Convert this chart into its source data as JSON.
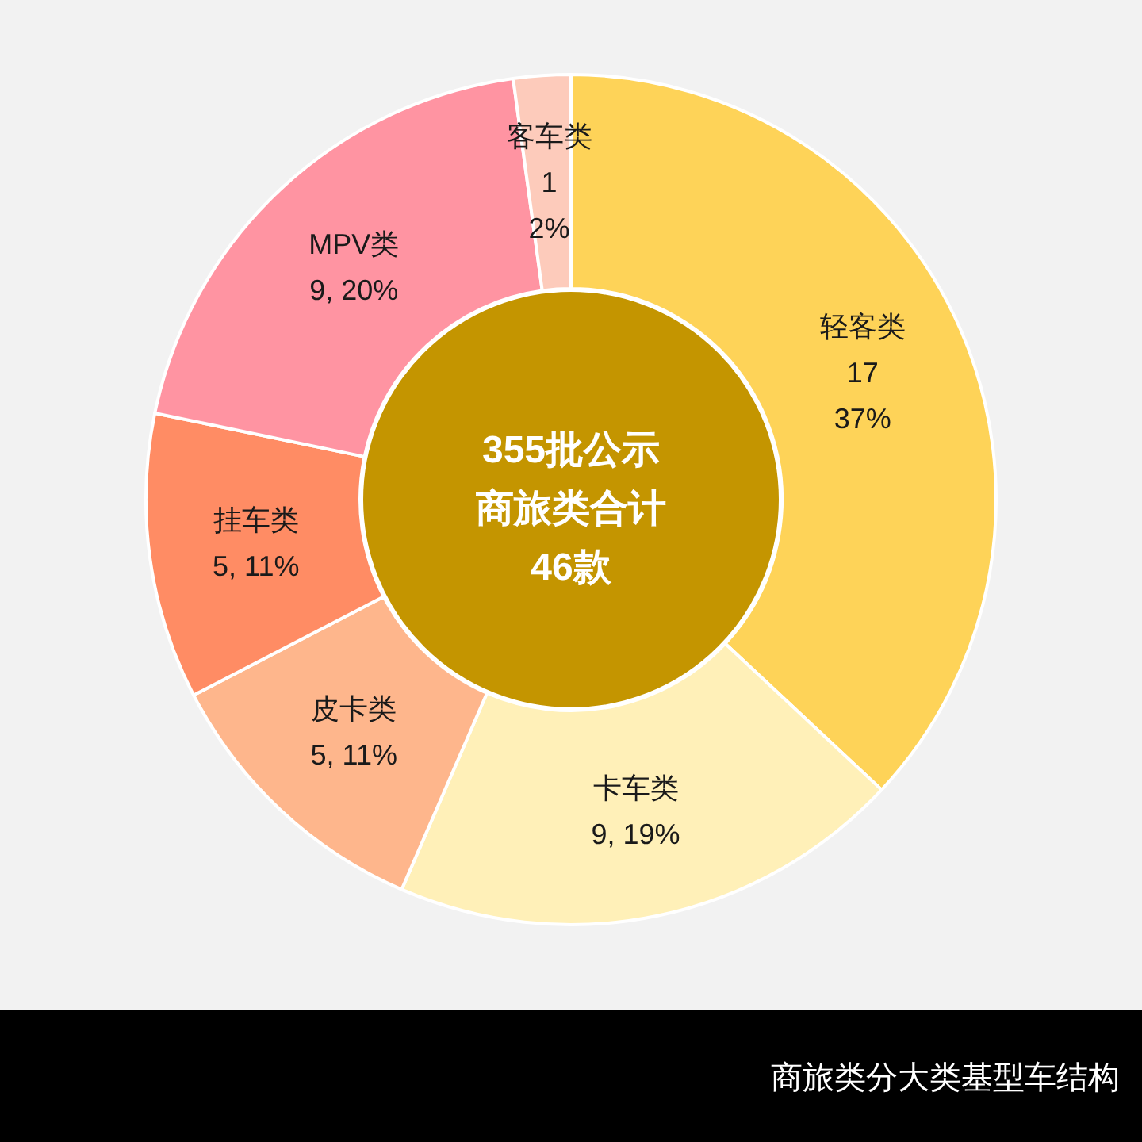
{
  "chart_data": {
    "type": "donut",
    "title": "商旅类分大类基型车结构",
    "categories": [
      "轻客类",
      "卡车类",
      "皮卡类",
      "挂车类",
      "MPV类",
      "客车类"
    ],
    "values": [
      17,
      9,
      5,
      5,
      9,
      1
    ],
    "colors": [
      "#fed358",
      "#fff0b8",
      "#feb68c",
      "#ff8c64",
      "#ff94a2",
      "#fdcbbb"
    ],
    "value_labels": [
      "17\n37%",
      "9, 19%",
      "5, 11%",
      "5, 11%",
      "9, 20%",
      "1\n2%"
    ],
    "annotations": [
      "355批公示",
      "商旅类合计",
      "46款"
    ]
  }
}
